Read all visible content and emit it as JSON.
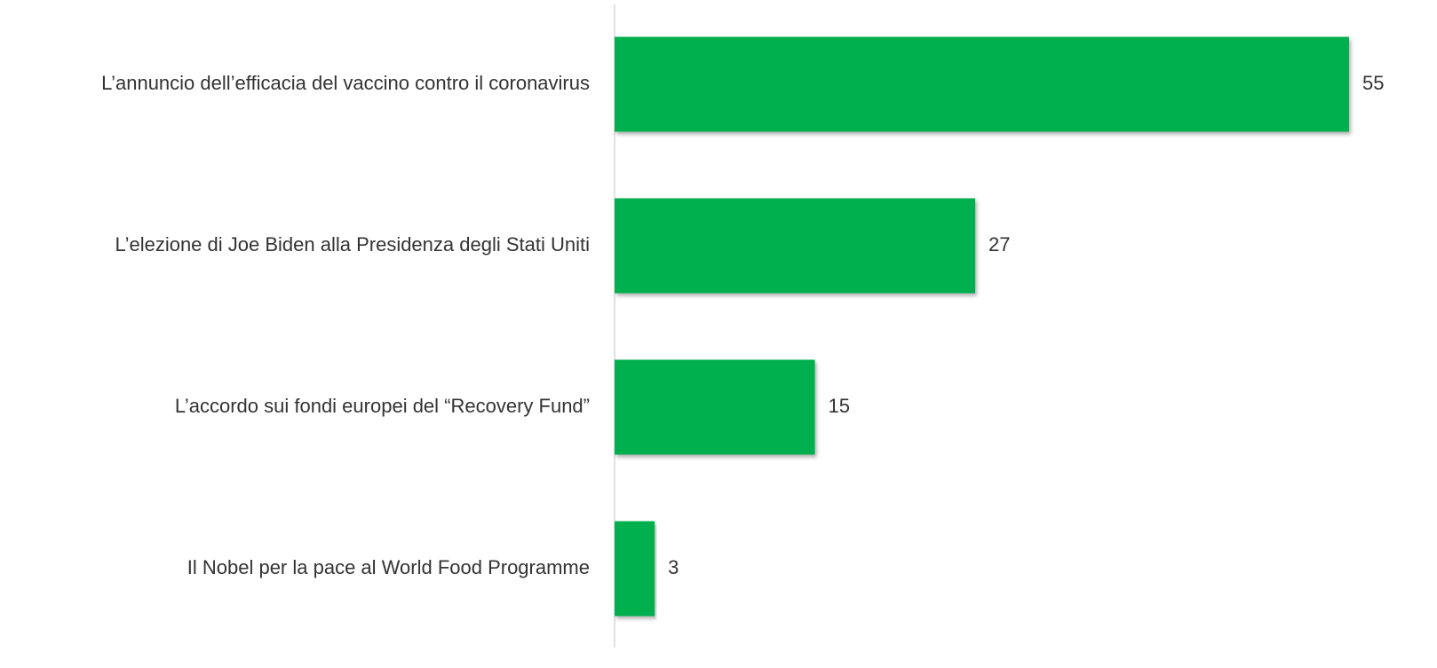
{
  "chart_data": {
    "type": "barh",
    "categories": [
      "L’annuncio dell’efficacia del vaccino contro il coronavirus",
      "L’elezione di Joe Biden alla Presidenza degli Stati Uniti",
      "L’accordo sui fondi europei del “Recovery Fund”",
      "Il Nobel per la pace al World Food Programme"
    ],
    "values": [
      55,
      27,
      15,
      3
    ],
    "color": "#00b050",
    "xlim": [
      0,
      55
    ]
  }
}
